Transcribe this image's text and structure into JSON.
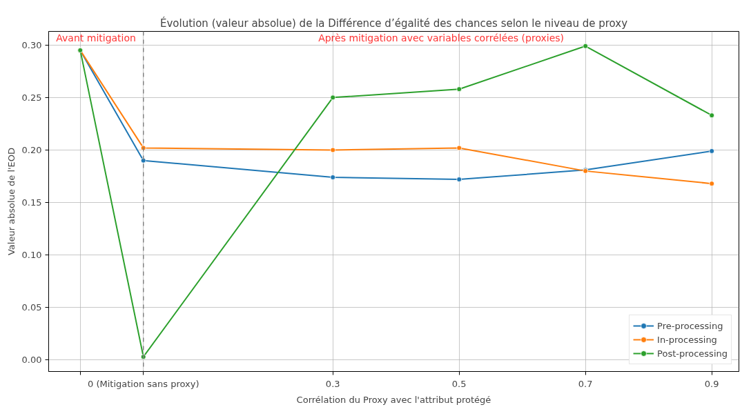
{
  "chart_data": {
    "type": "line",
    "title": "Évolution (valeur absolue) de la Différence d’égalité des chances selon le niveau de proxy",
    "xlabel": "Corrélation du Proxy avec l'attribut protégé",
    "ylabel": "Valeur absolue de l'EOD",
    "x": [
      -0.1,
      0,
      0.3,
      0.5,
      0.7,
      0.9
    ],
    "series": [
      {
        "name": "Pre-processing",
        "color": "#1f77b4",
        "values": [
          0.295,
          0.19,
          0.174,
          0.172,
          0.181,
          0.199
        ]
      },
      {
        "name": "In-processing",
        "color": "#ff7f0e",
        "values": [
          0.295,
          0.202,
          0.2,
          0.202,
          0.18,
          0.168
        ]
      },
      {
        "name": "Post-processing",
        "color": "#2ca02c",
        "values": [
          0.295,
          0.003,
          0.25,
          0.258,
          0.299,
          0.233
        ]
      }
    ],
    "xlim": [
      -0.15,
      0.943
    ],
    "ylim": [
      -0.011,
      0.313
    ],
    "xticks": [
      {
        "value": -0.1,
        "label": null
      },
      {
        "value": 0,
        "label": "0 (Mitigation sans proxy)"
      },
      0.3,
      0.5,
      0.7,
      0.9
    ],
    "yticks": [
      {
        "value": 0,
        "label": "0.00"
      },
      {
        "value": 0.05,
        "label": "0.05"
      },
      {
        "value": 0.1,
        "label": "0.10"
      },
      {
        "value": 0.15,
        "label": "0.15"
      },
      {
        "value": 0.2,
        "label": "0.20"
      },
      {
        "value": 0.25,
        "label": "0.25"
      },
      {
        "value": 0.3,
        "label": "0.30"
      }
    ],
    "ref_lines": [
      {
        "axis": "x",
        "value": 0,
        "label": null,
        "color": "#808080",
        "line_style": "dashed"
      }
    ],
    "annotations": [
      "Avant mitigation",
      "Après mitigation avec variables corrélées (proxies)"
    ],
    "grid": true,
    "legend": "bottom right",
    "marker": "circle",
    "line_style": "solid"
  }
}
